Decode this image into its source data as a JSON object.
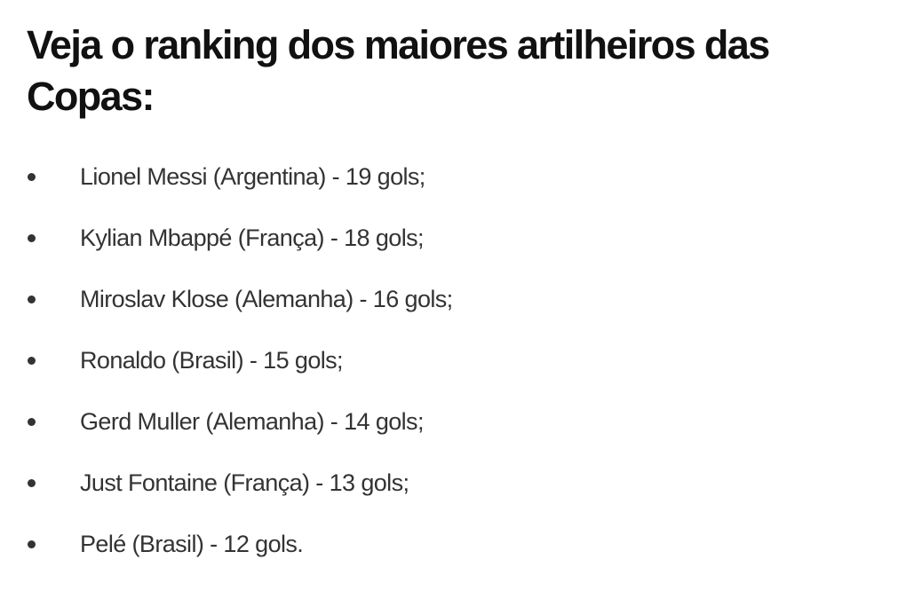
{
  "heading": "Veja o ranking dos maiores artilheiros das Copas:",
  "list": [
    "Lionel Messi (Argentina) - 19 gols;",
    "Kylian Mbappé (França) - 18 gols;",
    "Miroslav Klose (Alemanha) - 16 gols;",
    "Ronaldo (Brasil) - 15 gols;",
    "Gerd Muller (Alemanha) - 14 gols;",
    "Just Fontaine (França) - 13 gols;",
    "Pelé (Brasil) - 12 gols."
  ]
}
